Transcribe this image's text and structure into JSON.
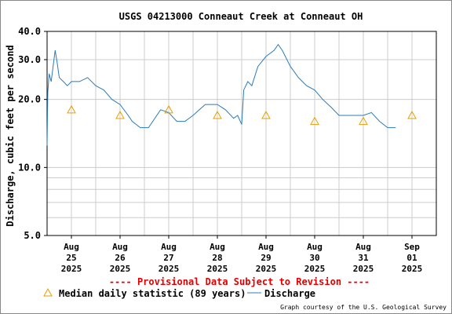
{
  "chart_data": {
    "type": "line",
    "title": "USGS 04213000 Conneaut Creek at Conneaut OH",
    "ylabel": "Discharge, cubic feet per second",
    "xlabel": "",
    "y_scale": "log",
    "ylim": [
      5.0,
      40.0
    ],
    "y_tick_labels": [
      "40.0",
      "30.0",
      "20.0",
      "10.0",
      "5.0"
    ],
    "y_ticks": [
      40,
      30,
      20,
      10,
      5
    ],
    "y_minor_gridlines": [
      6,
      7,
      8,
      9
    ],
    "grid": true,
    "xlim": [
      "2025-08-24T12:00",
      "2025-09-01T12:00"
    ],
    "x_ticks": [
      {
        "at": "2025-08-25T00:00",
        "label": [
          "Aug",
          "25",
          "2025"
        ]
      },
      {
        "at": "2025-08-26T00:00",
        "label": [
          "Aug",
          "26",
          "2025"
        ]
      },
      {
        "at": "2025-08-27T00:00",
        "label": [
          "Aug",
          "27",
          "2025"
        ]
      },
      {
        "at": "2025-08-28T00:00",
        "label": [
          "Aug",
          "28",
          "2025"
        ]
      },
      {
        "at": "2025-08-29T00:00",
        "label": [
          "Aug",
          "29",
          "2025"
        ]
      },
      {
        "at": "2025-08-30T00:00",
        "label": [
          "Aug",
          "30",
          "2025"
        ]
      },
      {
        "at": "2025-08-31T00:00",
        "label": [
          "Aug",
          "31",
          "2025"
        ]
      },
      {
        "at": "2025-09-01T00:00",
        "label": [
          "Sep",
          "01",
          "2025"
        ]
      }
    ],
    "provisional_note": "---- Provisional Data Subject to Revision ----",
    "credit": "Graph courtesy of the U.S. Geological Survey",
    "series": [
      {
        "name": "Median daily statistic (89 years)",
        "marker": "triangle",
        "color": "#e6a000",
        "x": [
          "2025-08-25T00:00",
          "2025-08-26T00:00",
          "2025-08-27T00:00",
          "2025-08-28T00:00",
          "2025-08-29T00:00",
          "2025-08-30T00:00",
          "2025-08-31T00:00",
          "2025-09-01T00:00"
        ],
        "y": [
          18,
          17,
          18,
          17,
          17,
          16,
          16,
          17
        ]
      },
      {
        "name": "Discharge",
        "color": "#2b7bb9",
        "x": [
          "2025-08-24T12:00",
          "2025-08-24T12:20",
          "2025-08-24T13:00",
          "2025-08-24T14:00",
          "2025-08-24T16:00",
          "2025-08-24T17:00",
          "2025-08-24T18:00",
          "2025-08-24T20:00",
          "2025-08-24T22:00",
          "2025-08-25T00:00",
          "2025-08-25T04:00",
          "2025-08-25T08:00",
          "2025-08-25T12:00",
          "2025-08-25T16:00",
          "2025-08-25T20:00",
          "2025-08-26T00:00",
          "2025-08-26T04:00",
          "2025-08-26T06:00",
          "2025-08-26T10:00",
          "2025-08-26T14:00",
          "2025-08-26T20:00",
          "2025-08-27T00:00",
          "2025-08-27T04:00",
          "2025-08-27T08:00",
          "2025-08-27T12:00",
          "2025-08-27T18:00",
          "2025-08-28T00:00",
          "2025-08-28T04:00",
          "2025-08-28T08:00",
          "2025-08-28T10:00",
          "2025-08-28T12:00",
          "2025-08-28T13:00",
          "2025-08-28T15:00",
          "2025-08-28T17:00",
          "2025-08-28T20:00",
          "2025-08-29T00:00",
          "2025-08-29T04:00",
          "2025-08-29T06:00",
          "2025-08-29T08:00",
          "2025-08-29T12:00",
          "2025-08-29T16:00",
          "2025-08-29T20:00",
          "2025-08-30T00:00",
          "2025-08-30T04:00",
          "2025-08-30T08:00",
          "2025-08-30T12:00",
          "2025-08-30T16:00",
          "2025-08-30T20:00",
          "2025-08-31T00:00",
          "2025-08-31T04:00",
          "2025-08-31T08:00",
          "2025-08-31T12:00",
          "2025-08-31T16:00"
        ],
        "y": [
          12.5,
          21.5,
          26,
          24,
          33,
          29,
          25,
          24,
          23,
          24,
          24,
          25,
          23,
          22,
          20,
          19,
          17,
          16,
          15,
          15,
          18,
          17.5,
          16,
          16,
          17,
          19,
          19,
          18,
          16.5,
          17,
          15.5,
          22,
          24,
          23,
          28,
          31,
          33,
          35,
          33,
          28,
          25,
          23,
          22,
          20,
          18.5,
          17,
          17,
          17,
          17,
          17.5,
          16,
          15,
          15
        ]
      }
    ]
  }
}
